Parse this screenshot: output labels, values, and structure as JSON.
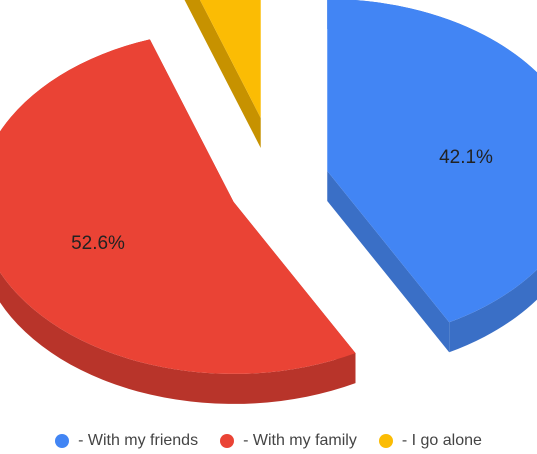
{
  "chart_data": {
    "type": "pie",
    "style": "3d-exploded",
    "slices": [
      {
        "label": "- With my friends",
        "value": 42.1,
        "display": "42.1%",
        "color": "#4285f4",
        "side_color": "#3a6fc6"
      },
      {
        "label": "- With my family",
        "value": 52.6,
        "display": "52.6%",
        "color": "#ea4335",
        "side_color": "#b8342a"
      },
      {
        "label": "- I go alone",
        "value": 5.3,
        "display": "",
        "color": "#fbbc04",
        "side_color": "#c79200"
      }
    ],
    "legend_position": "bottom"
  }
}
